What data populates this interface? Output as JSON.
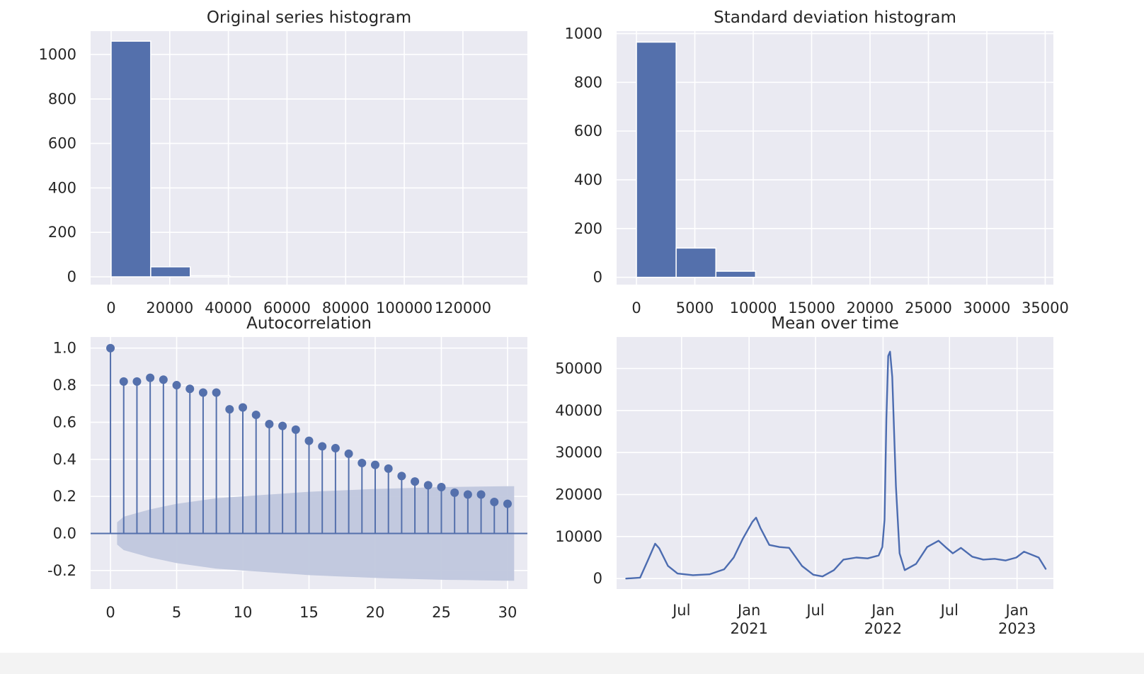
{
  "chart_data": [
    {
      "type": "bar",
      "title": "Original series histogram",
      "xlabel": "",
      "ylabel": "",
      "bin_edges": [
        0,
        13500,
        27000,
        40500,
        54000,
        67500,
        81000,
        94500,
        108000,
        121500,
        135000
      ],
      "values": [
        1060,
        45,
        5,
        0,
        0,
        0,
        0,
        0,
        0,
        0
      ],
      "xlim": [
        -7000,
        142000
      ],
      "ylim": [
        -35,
        1105
      ],
      "xticks": [
        0,
        20000,
        40000,
        60000,
        80000,
        100000,
        120000
      ],
      "xtick_labels": [
        "0",
        "20000",
        "40000",
        "60000",
        "80000",
        "100000",
        "120000"
      ],
      "yticks": [
        0,
        200,
        400,
        600,
        800,
        1000
      ],
      "ytick_labels": [
        "0",
        "200",
        "400",
        "600",
        "800",
        "1000"
      ],
      "color": "#5470ac",
      "grid": true
    },
    {
      "type": "bar",
      "title": "Standard deviation histogram",
      "xlabel": "",
      "ylabel": "",
      "bin_edges": [
        0,
        3400,
        6800,
        10200,
        13600,
        17000,
        20400,
        23800,
        27200,
        30600,
        34000
      ],
      "values": [
        965,
        120,
        25,
        0,
        0,
        0,
        0,
        0,
        0,
        0
      ],
      "xlim": [
        -1700,
        35700
      ],
      "ylim": [
        -30,
        1010
      ],
      "xticks": [
        0,
        5000,
        10000,
        15000,
        20000,
        25000,
        30000,
        35000
      ],
      "xtick_labels": [
        "0",
        "5000",
        "10000",
        "15000",
        "20000",
        "25000",
        "30000",
        "35000"
      ],
      "yticks": [
        0,
        200,
        400,
        600,
        800,
        1000
      ],
      "ytick_labels": [
        "0",
        "200",
        "400",
        "600",
        "800",
        "1000"
      ],
      "color": "#5470ac",
      "grid": true
    },
    {
      "type": "scatter",
      "title": "Autocorrelation",
      "xlabel": "",
      "ylabel": "",
      "lags": [
        0,
        1,
        2,
        3,
        4,
        5,
        6,
        7,
        8,
        9,
        10,
        11,
        12,
        13,
        14,
        15,
        16,
        17,
        18,
        19,
        20,
        21,
        22,
        23,
        24,
        25,
        26,
        27,
        28,
        29,
        30
      ],
      "values": [
        1.0,
        0.82,
        0.82,
        0.84,
        0.83,
        0.8,
        0.78,
        0.76,
        0.76,
        0.67,
        0.68,
        0.64,
        0.59,
        0.58,
        0.56,
        0.5,
        0.47,
        0.46,
        0.43,
        0.38,
        0.37,
        0.35,
        0.31,
        0.28,
        0.26,
        0.25,
        0.22,
        0.21,
        0.21,
        0.17,
        0.16
      ],
      "confidence_band": [
        0.06,
        0.09,
        0.11,
        0.13,
        0.145,
        0.16,
        0.17,
        0.18,
        0.19,
        0.195,
        0.2,
        0.205,
        0.21,
        0.215,
        0.22,
        0.225,
        0.228,
        0.231,
        0.234,
        0.237,
        0.24,
        0.242,
        0.244,
        0.246,
        0.248,
        0.25,
        0.251,
        0.252,
        0.253,
        0.254,
        0.255
      ],
      "xlim": [
        -1.5,
        31.5
      ],
      "ylim": [
        -0.3,
        1.06
      ],
      "xticks": [
        0,
        5,
        10,
        15,
        20,
        25,
        30
      ],
      "xtick_labels": [
        "0",
        "5",
        "10",
        "15",
        "20",
        "25",
        "30"
      ],
      "yticks": [
        -0.2,
        0.0,
        0.2,
        0.4,
        0.6,
        0.8,
        1.0
      ],
      "ytick_labels": [
        "-0.2",
        "0.0",
        "0.2",
        "0.4",
        "0.6",
        "0.8",
        "1.0"
      ],
      "color": "#5470ac",
      "band_color": "#c0c7dd",
      "grid": true
    },
    {
      "type": "line",
      "title": "Mean over time",
      "xlabel": "",
      "ylabel": "",
      "x": [
        "2020-02-01",
        "2020-03-10",
        "2020-04-01",
        "2020-04-20",
        "2020-05-01",
        "2020-05-25",
        "2020-06-20",
        "2020-08-01",
        "2020-09-15",
        "2020-10-25",
        "2020-11-20",
        "2020-12-15",
        "2021-01-10",
        "2021-01-20",
        "2021-02-01",
        "2021-02-25",
        "2021-03-25",
        "2021-04-20",
        "2021-05-25",
        "2021-06-25",
        "2021-07-20",
        "2021-08-20",
        "2021-09-15",
        "2021-10-20",
        "2021-11-20",
        "2021-12-20",
        "2021-12-30",
        "2022-01-05",
        "2022-01-10",
        "2022-01-15",
        "2022-01-20",
        "2022-01-26",
        "2022-02-05",
        "2022-02-15",
        "2022-03-01",
        "2022-04-01",
        "2022-05-01",
        "2022-06-01",
        "2022-06-20",
        "2022-07-10",
        "2022-08-01",
        "2022-09-01",
        "2022-10-01",
        "2022-11-01",
        "2022-12-01",
        "2022-12-30",
        "2023-01-20",
        "2023-03-01",
        "2023-03-20"
      ],
      "y": [
        0,
        200,
        4500,
        8300,
        7200,
        3000,
        1200,
        800,
        1000,
        2200,
        5000,
        9500,
        13500,
        14500,
        12000,
        8000,
        7500,
        7300,
        3000,
        900,
        500,
        2000,
        4500,
        5000,
        4800,
        5500,
        7500,
        14000,
        38000,
        53000,
        54000,
        48000,
        22000,
        6000,
        2000,
        3500,
        7500,
        9000,
        7500,
        6000,
        7300,
        5200,
        4500,
        4700,
        4300,
        5000,
        6400,
        5000,
        2300
      ],
      "xlim": [
        "2020-01-06",
        "2023-04-10"
      ],
      "ylim": [
        -2500,
        57500
      ],
      "xticks": [
        "2020-07-01",
        "2021-01-01",
        "2021-07-01",
        "2022-01-01",
        "2022-07-01",
        "2023-01-01"
      ],
      "xtick_labels": [
        [
          "Jul",
          ""
        ],
        [
          "Jan",
          "2021"
        ],
        [
          "Jul",
          ""
        ],
        [
          "Jan",
          "2022"
        ],
        [
          "Jul",
          ""
        ],
        [
          "Jan",
          "2023"
        ]
      ],
      "yticks": [
        0,
        10000,
        20000,
        30000,
        40000,
        50000
      ],
      "ytick_labels": [
        "0",
        "10000",
        "20000",
        "30000",
        "40000",
        "50000"
      ],
      "color": "#4c6cb0",
      "grid": true
    }
  ]
}
